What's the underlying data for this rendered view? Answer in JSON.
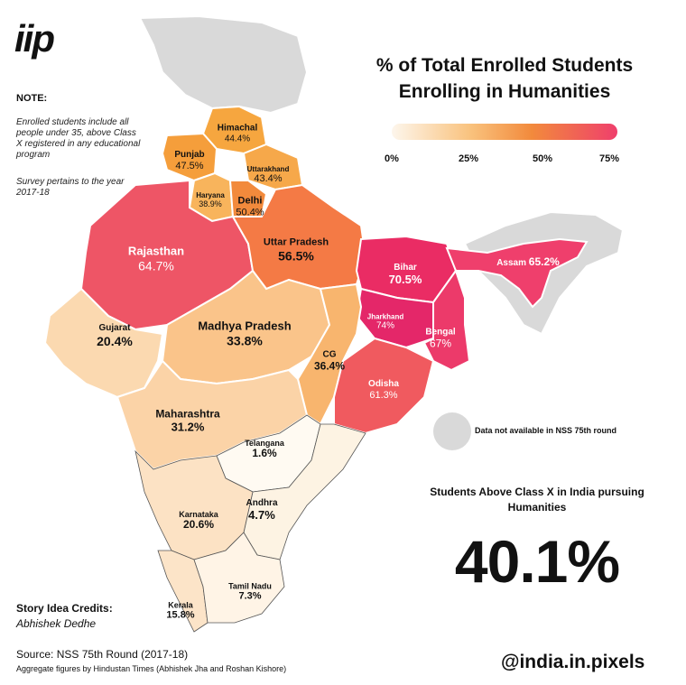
{
  "logo": "iip",
  "note": {
    "heading": "NOTE:",
    "line1": "Enrolled students include all people under 35, above Class X registered in any educational program",
    "line2": "Survey pertains to the year 2017-18"
  },
  "title": "% of Total Enrolled Students Enrolling in Humanities",
  "legend": {
    "ticks": [
      "0%",
      "25%",
      "50%",
      "75%"
    ],
    "na_label": "Data not available in NSS 75th round"
  },
  "stat": {
    "label": "Students Above Class X in India pursuing Humanities",
    "value": "40.1%"
  },
  "credits": {
    "heading": "Story Idea Credits:",
    "name": "Abhishek Dedhe"
  },
  "source": "Source: NSS 75th Round (2017-18)",
  "aggregate": "Aggregate figures by Hindustan Times (Abhishek Jha and Roshan Kishore)",
  "handle": "@india.in.pixels",
  "colors": {
    "na": "#d9d9d9",
    "low": "#fdf6ec",
    "mid": "#f4a259",
    "high": "#e8366a"
  },
  "states": [
    {
      "name": "Himachal",
      "value": "44.4%"
    },
    {
      "name": "Punjab",
      "value": "47.5%"
    },
    {
      "name": "Uttarakhand",
      "value": "43.4%"
    },
    {
      "name": "Haryana",
      "value": "38.9%"
    },
    {
      "name": "Delhi",
      "value": "50.4%"
    },
    {
      "name": "Rajasthan",
      "value": "64.7%"
    },
    {
      "name": "Uttar Pradesh",
      "value": "56.5%"
    },
    {
      "name": "Bihar",
      "value": "70.5%"
    },
    {
      "name": "Assam",
      "value": "65.2%"
    },
    {
      "name": "Jharkhand",
      "value": "74%"
    },
    {
      "name": "Bengal",
      "value": "67%"
    },
    {
      "name": "Gujarat",
      "value": "20.4%"
    },
    {
      "name": "Madhya Pradesh",
      "value": "33.8%"
    },
    {
      "name": "CG",
      "value": "36.4%"
    },
    {
      "name": "Odisha",
      "value": "61.3%"
    },
    {
      "name": "Maharashtra",
      "value": "31.2%"
    },
    {
      "name": "Telangana",
      "value": "1.6%"
    },
    {
      "name": "Andhra",
      "value": "4.7%"
    },
    {
      "name": "Karnataka",
      "value": "20.6%"
    },
    {
      "name": "Tamil Nadu",
      "value": "7.3%"
    },
    {
      "name": "Kerala",
      "value": "15.8%"
    }
  ]
}
